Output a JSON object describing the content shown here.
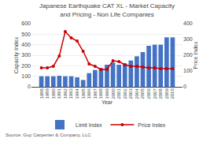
{
  "chart_data": {
    "type": "bar",
    "title": "Japanese Earthquake CAT XL - Market Capacity and Pricing - Non Life Companies",
    "xlabel": "Year",
    "ylabel": "Capacity Index",
    "y2label": "Price Index",
    "source": "Source: Guy Carpenter & Company, LLC",
    "categories": [
      "1988",
      "1989",
      "1990",
      "1991",
      "1992",
      "1993",
      "1994",
      "1995",
      "1996",
      "1997",
      "1998",
      "1999",
      "2000",
      "2001",
      "2002",
      "2003",
      "2004",
      "2005",
      "2006",
      "2007",
      "2008",
      "2009",
      "2010"
    ],
    "series": [
      {
        "name": "Limit Index",
        "type": "bar",
        "color": "#4472C4",
        "values": [
          100,
          100,
          100,
          105,
          100,
          100,
          90,
          65,
          130,
          160,
          175,
          210,
          230,
          210,
          220,
          250,
          290,
          330,
          390,
          400,
          400,
          470,
          470
        ]
      },
      {
        "name": "Price Index",
        "type": "line",
        "color": "#CC0000",
        "marker": "circle",
        "axis": "y2",
        "values": [
          120,
          120,
          130,
          195,
          350,
          310,
          290,
          225,
          145,
          130,
          110,
          110,
          165,
          160,
          140,
          130,
          130,
          125,
          120,
          120,
          115,
          115,
          115
        ]
      }
    ],
    "ylim": [
      0,
      600
    ],
    "yticks": [
      0,
      100,
      200,
      300,
      400,
      500,
      600
    ],
    "y2lim": [
      0,
      400
    ],
    "y2ticks": [
      0,
      100,
      200,
      300,
      400
    ],
    "grid": true,
    "legend": "bottom"
  }
}
